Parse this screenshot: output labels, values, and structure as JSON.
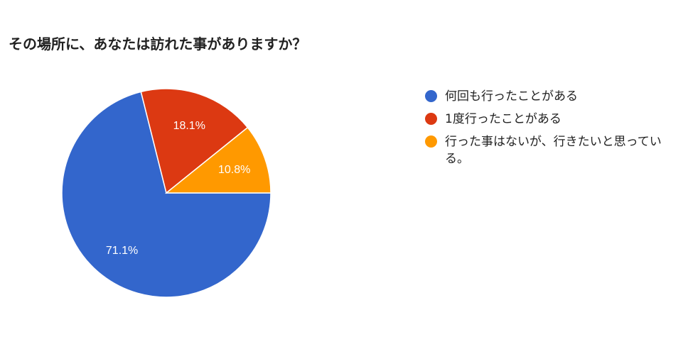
{
  "chart_data": {
    "type": "pie",
    "title": "その場所に、あなたは訪れた事がありますか？",
    "legend_position": "right",
    "slices": [
      {
        "label": "何回も行ったことがある",
        "value": 71.1,
        "display": "71.1%",
        "color": "#3366cc"
      },
      {
        "label": "1度行ったことがある",
        "value": 18.1,
        "display": "18.1%",
        "color": "#dc3912"
      },
      {
        "label": "行った事はないが、行きたいと思っている。",
        "value": 10.8,
        "display": "10.8%",
        "color": "#ff9900"
      }
    ]
  }
}
